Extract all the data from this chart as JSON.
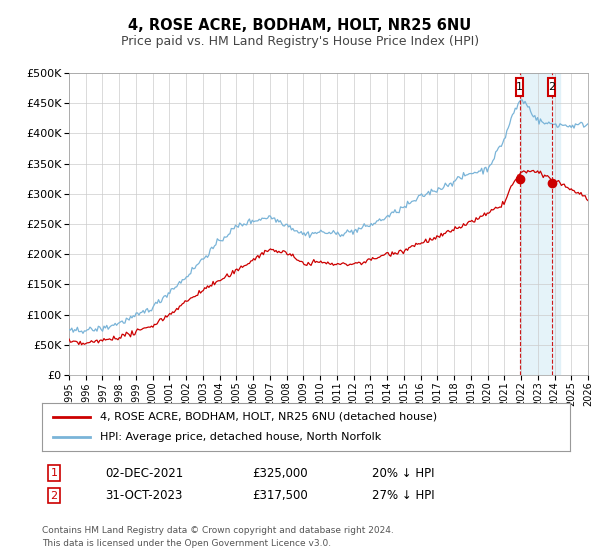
{
  "title": "4, ROSE ACRE, BODHAM, HOLT, NR25 6NU",
  "subtitle": "Price paid vs. HM Land Registry's House Price Index (HPI)",
  "legend_line1": "4, ROSE ACRE, BODHAM, HOLT, NR25 6NU (detached house)",
  "legend_line2": "HPI: Average price, detached house, North Norfolk",
  "footnote1": "Contains HM Land Registry data © Crown copyright and database right 2024.",
  "footnote2": "This data is licensed under the Open Government Licence v3.0.",
  "annotation1_label": "1",
  "annotation1_date": "02-DEC-2021",
  "annotation1_price": "£325,000",
  "annotation1_hpi": "20% ↓ HPI",
  "annotation2_label": "2",
  "annotation2_date": "31-OCT-2023",
  "annotation2_price": "£317,500",
  "annotation2_hpi": "27% ↓ HPI",
  "hpi_color": "#7ab4d8",
  "price_color": "#cc0000",
  "annotation_color": "#cc0000",
  "shaded_color": "#dbeef7",
  "xmin": 1995,
  "xmax": 2026,
  "ymin": 0,
  "ymax": 500000,
  "yticks": [
    0,
    50000,
    100000,
    150000,
    200000,
    250000,
    300000,
    350000,
    400000,
    450000,
    500000
  ],
  "xticks": [
    1995,
    1996,
    1997,
    1998,
    1999,
    2000,
    2001,
    2002,
    2003,
    2004,
    2005,
    2006,
    2007,
    2008,
    2009,
    2010,
    2011,
    2012,
    2013,
    2014,
    2015,
    2016,
    2017,
    2018,
    2019,
    2020,
    2021,
    2022,
    2023,
    2024,
    2025,
    2026
  ],
  "sale1_x": 2021.92,
  "sale1_y": 325000,
  "sale2_x": 2023.83,
  "sale2_y": 317500,
  "vline1_x": 2021.92,
  "vline2_x": 2023.83
}
